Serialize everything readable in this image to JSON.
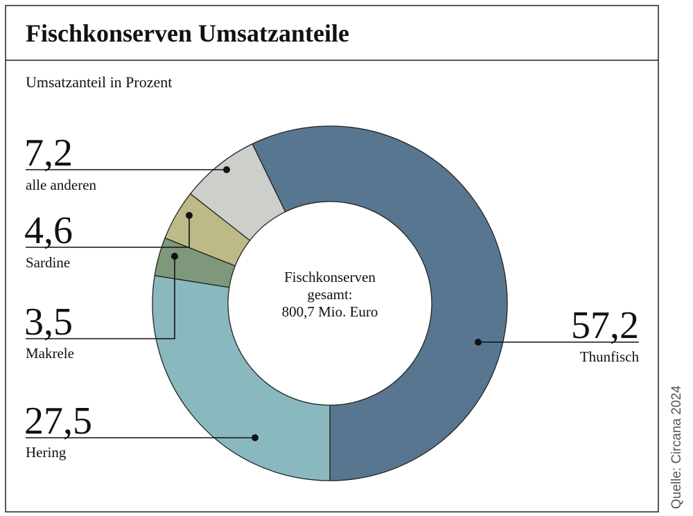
{
  "chart_data": {
    "type": "pie",
    "title": "Fischkonserven Umsatzanteile",
    "subtitle": "Umsatzanteil in Prozent",
    "center_text": [
      "Fischkonserven",
      "gesamt:",
      "800,7 Mio. Euro"
    ],
    "source": "Quelle: Circana 2024",
    "slices": [
      {
        "name": "Thunfisch",
        "value": 57.2,
        "label": "57,2",
        "color": "#58768f"
      },
      {
        "name": "alle anderen",
        "value": 7.2,
        "label": "7,2",
        "color": "#cdcfcb"
      },
      {
        "name": "Sardine",
        "value": 4.6,
        "label": "4,6",
        "color": "#bcbb88"
      },
      {
        "name": "Makrele",
        "value": 3.5,
        "label": "3,5",
        "color": "#7f977a"
      },
      {
        "name": "Hering",
        "value": 27.5,
        "label": "27,5",
        "color": "#8ab8bf"
      }
    ]
  }
}
